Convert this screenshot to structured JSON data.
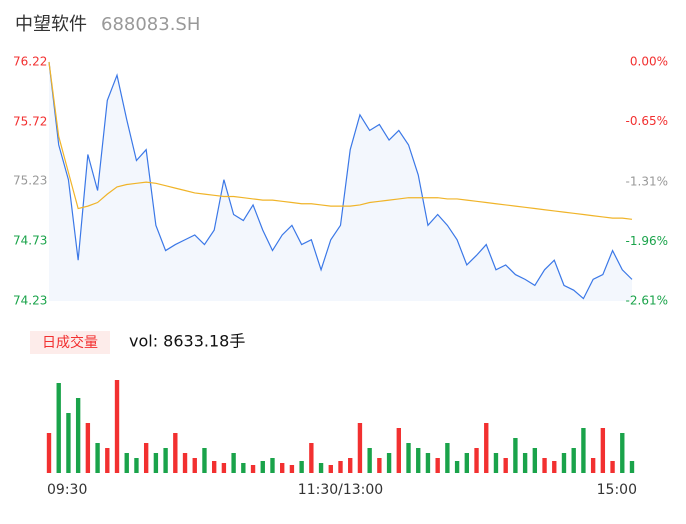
{
  "header": {
    "name": "中望软件",
    "code": "688083.SH"
  },
  "chart_data": [
    {
      "type": "line",
      "categories": [
        "09:30",
        null,
        null,
        null,
        null,
        null,
        null,
        null,
        null,
        null,
        null,
        null,
        null,
        null,
        null,
        null,
        null,
        null,
        null,
        null,
        null,
        null,
        null,
        null,
        null,
        null,
        null,
        null,
        null,
        null,
        "11:30/13:00",
        null,
        null,
        null,
        null,
        null,
        null,
        null,
        null,
        null,
        null,
        null,
        null,
        null,
        null,
        null,
        null,
        null,
        null,
        null,
        null,
        null,
        null,
        null,
        null,
        null,
        null,
        null,
        null,
        null,
        "15:00"
      ],
      "series": [
        {
          "color": "#3b78e7",
          "fill": "#f3f7fd",
          "values": [
            76.22,
            75.53,
            75.24,
            74.57,
            75.45,
            75.15,
            75.9,
            76.11,
            75.74,
            75.4,
            75.49,
            74.86,
            74.65,
            74.7,
            74.74,
            74.78,
            74.7,
            74.82,
            75.24,
            74.95,
            74.9,
            75.03,
            74.82,
            74.65,
            74.78,
            74.86,
            74.7,
            74.74,
            74.49,
            74.74,
            74.86,
            75.49,
            75.78,
            75.65,
            75.7,
            75.57,
            75.65,
            75.53,
            75.28,
            74.86,
            74.95,
            74.86,
            74.74,
            74.53,
            74.61,
            74.7,
            74.49,
            74.53,
            74.45,
            74.41,
            74.36,
            74.49,
            74.57,
            74.36,
            74.32,
            74.25,
            74.41,
            74.45,
            74.65,
            74.49,
            74.41
          ]
        },
        {
          "color": "#f0b429",
          "values": [
            76.22,
            75.6,
            75.3,
            75.0,
            75.02,
            75.05,
            75.12,
            75.18,
            75.2,
            75.21,
            75.22,
            75.21,
            75.19,
            75.17,
            75.15,
            75.13,
            75.12,
            75.11,
            75.1,
            75.1,
            75.09,
            75.08,
            75.07,
            75.07,
            75.06,
            75.05,
            75.04,
            75.04,
            75.03,
            75.02,
            75.02,
            75.02,
            75.03,
            75.05,
            75.06,
            75.07,
            75.08,
            75.09,
            75.09,
            75.09,
            75.09,
            75.08,
            75.08,
            75.07,
            75.06,
            75.05,
            75.04,
            75.03,
            75.02,
            75.01,
            75.0,
            74.99,
            74.98,
            74.97,
            74.96,
            74.95,
            74.94,
            74.93,
            74.92,
            74.92,
            74.91
          ]
        }
      ],
      "ylim": [
        74.23,
        76.22
      ],
      "yticks": [
        76.22,
        75.72,
        75.23,
        74.73,
        74.23
      ],
      "y2lim": [
        -2.61,
        0
      ],
      "y2ticks": [
        {
          "value": 0,
          "label": "0.00%"
        },
        {
          "value": -0.65,
          "label": "-0.65%"
        },
        {
          "value": -1.31,
          "label": "-1.31%"
        },
        {
          "value": -1.96,
          "label": "-1.96%"
        },
        {
          "value": -2.61,
          "label": "-2.61%"
        }
      ],
      "up_color": "#f23030",
      "down_color": "#1aa34a",
      "flat_color": "#999999"
    },
    {
      "type": "bar",
      "legend_label": "日成交量",
      "volume_label": "vol: 8633.18手",
      "up_color": "#f23030",
      "down_color": "#1aa34a",
      "values": [
        28800,
        64800,
        43200,
        54000,
        36000,
        21600,
        18000,
        66960,
        14400,
        10800,
        21600,
        14400,
        18000,
        28800,
        14400,
        10800,
        18000,
        8640,
        7200,
        14400,
        7200,
        5760,
        8640,
        10800,
        7200,
        5760,
        8640,
        21600,
        7200,
        5760,
        8640,
        10800,
        36000,
        18000,
        10800,
        14400,
        32400,
        21600,
        18000,
        14400,
        10800,
        21600,
        8640,
        14400,
        18000,
        36000,
        14400,
        10800,
        25200,
        14400,
        18000,
        10800,
        8640,
        14400,
        18000,
        32400,
        10800,
        32400,
        8640,
        28800,
        8633.18
      ]
    }
  ]
}
